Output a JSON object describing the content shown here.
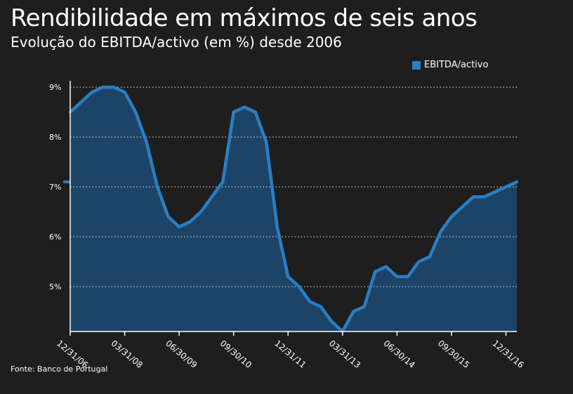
{
  "chart_data": {
    "type": "area",
    "title": "Rendibilidade em máximos de seis anos",
    "subtitle": "Evolução do EBITDA/activo (em %) desde 2006",
    "source": "Fonte: Banco de Portugal",
    "legend": [
      "EBITDA/activo"
    ],
    "legend_position": "top-right",
    "series_color": "#2a7ec4",
    "fill_color": "#1d4467",
    "y_ticks": [
      5,
      6,
      7,
      8,
      9
    ],
    "y_tick_labels": [
      "5%",
      "6%",
      "7%",
      "8%",
      "9%"
    ],
    "ylim": [
      4.1,
      9.1
    ],
    "x_tick_labels": [
      "12/31/06",
      "03/31/08",
      "06/30/09",
      "09/30/10",
      "12/31/11",
      "03/31/13",
      "06/30/14",
      "09/30/15",
      "12/31/16"
    ],
    "x_tick_index": [
      0,
      5,
      10,
      15,
      20,
      25,
      30,
      35,
      40
    ],
    "series": [
      {
        "name": "EBITDA/activo",
        "values": [
          8.5,
          8.7,
          8.9,
          9.0,
          9.0,
          8.9,
          8.5,
          7.9,
          7.0,
          6.4,
          6.2,
          6.3,
          6.5,
          6.8,
          7.1,
          8.5,
          8.6,
          8.5,
          7.9,
          6.2,
          5.2,
          5.0,
          4.7,
          4.6,
          4.3,
          4.1,
          4.5,
          4.6,
          5.3,
          5.4,
          5.2,
          5.2,
          5.5,
          5.6,
          6.1,
          6.4,
          6.6,
          6.8,
          6.8,
          6.9,
          7.0,
          7.1
        ]
      }
    ],
    "marker_value": 7.1,
    "grid": true
  }
}
